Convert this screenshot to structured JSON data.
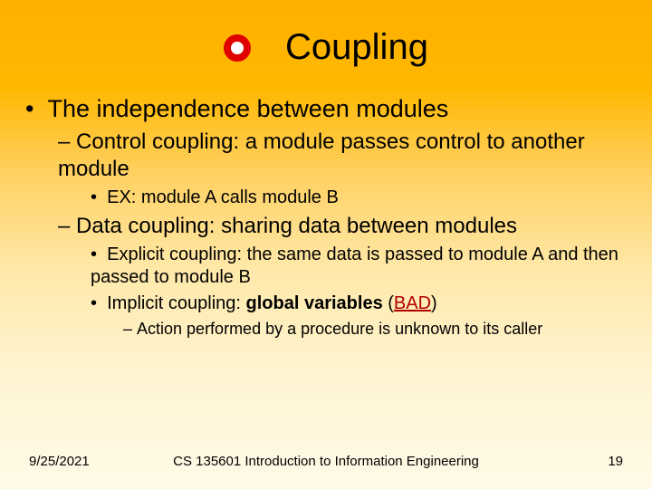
{
  "title": "Coupling",
  "bullets": {
    "main": "The independence between modules",
    "control": "Control coupling: a module passes control to another module",
    "control_ex": "EX: module A calls module B",
    "data": "Data coupling: sharing data between modules",
    "explicit": "Explicit coupling: the same data is passed to module A and then passed to module B",
    "implicit_prefix": "Implicit coupling: ",
    "implicit_bold": "global variables",
    "implicit_open": " (",
    "implicit_bad": "BAD",
    "implicit_close": ")",
    "action": "Action performed by a procedure is unknown to its caller"
  },
  "footer": {
    "date": "9/25/2021",
    "course": "CS 135601 Introduction to Information Engineering",
    "page": "19"
  },
  "colors": {
    "ring": "#e00000",
    "bad": "#b00000"
  }
}
